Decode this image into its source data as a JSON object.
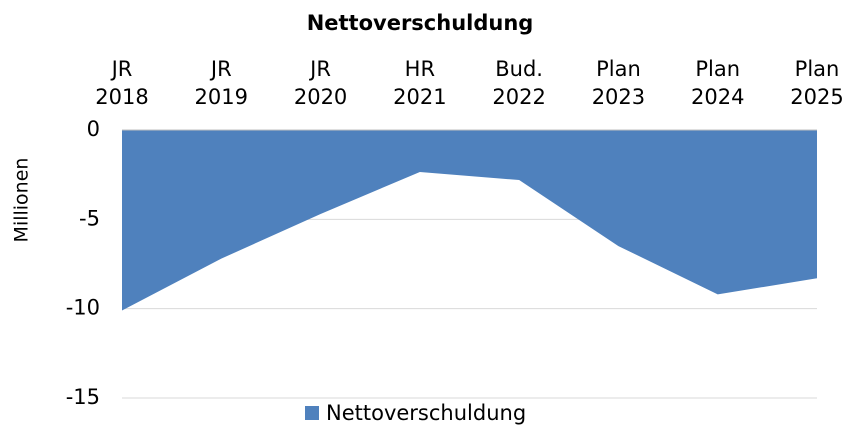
{
  "chart_data": {
    "type": "area",
    "title": "Nettoverschuldung",
    "y_label": "Millionen",
    "categories": [
      "JR 2018",
      "JR 2019",
      "JR 2020",
      "HR 2021",
      "Bud. 2022",
      "Plan 2023",
      "Plan 2024",
      "Plan 2025"
    ],
    "series": [
      {
        "name": "Nettoverschuldung",
        "color": "#4f81bd",
        "values": [
          -10.1,
          -7.2,
          -4.7,
          -2.35,
          -2.8,
          -6.5,
          -9.2,
          -8.3
        ]
      }
    ],
    "ylim": [
      -15,
      0
    ],
    "yticks": [
      0,
      -5,
      -10,
      -15
    ],
    "grid": true,
    "legend": "bottom"
  }
}
